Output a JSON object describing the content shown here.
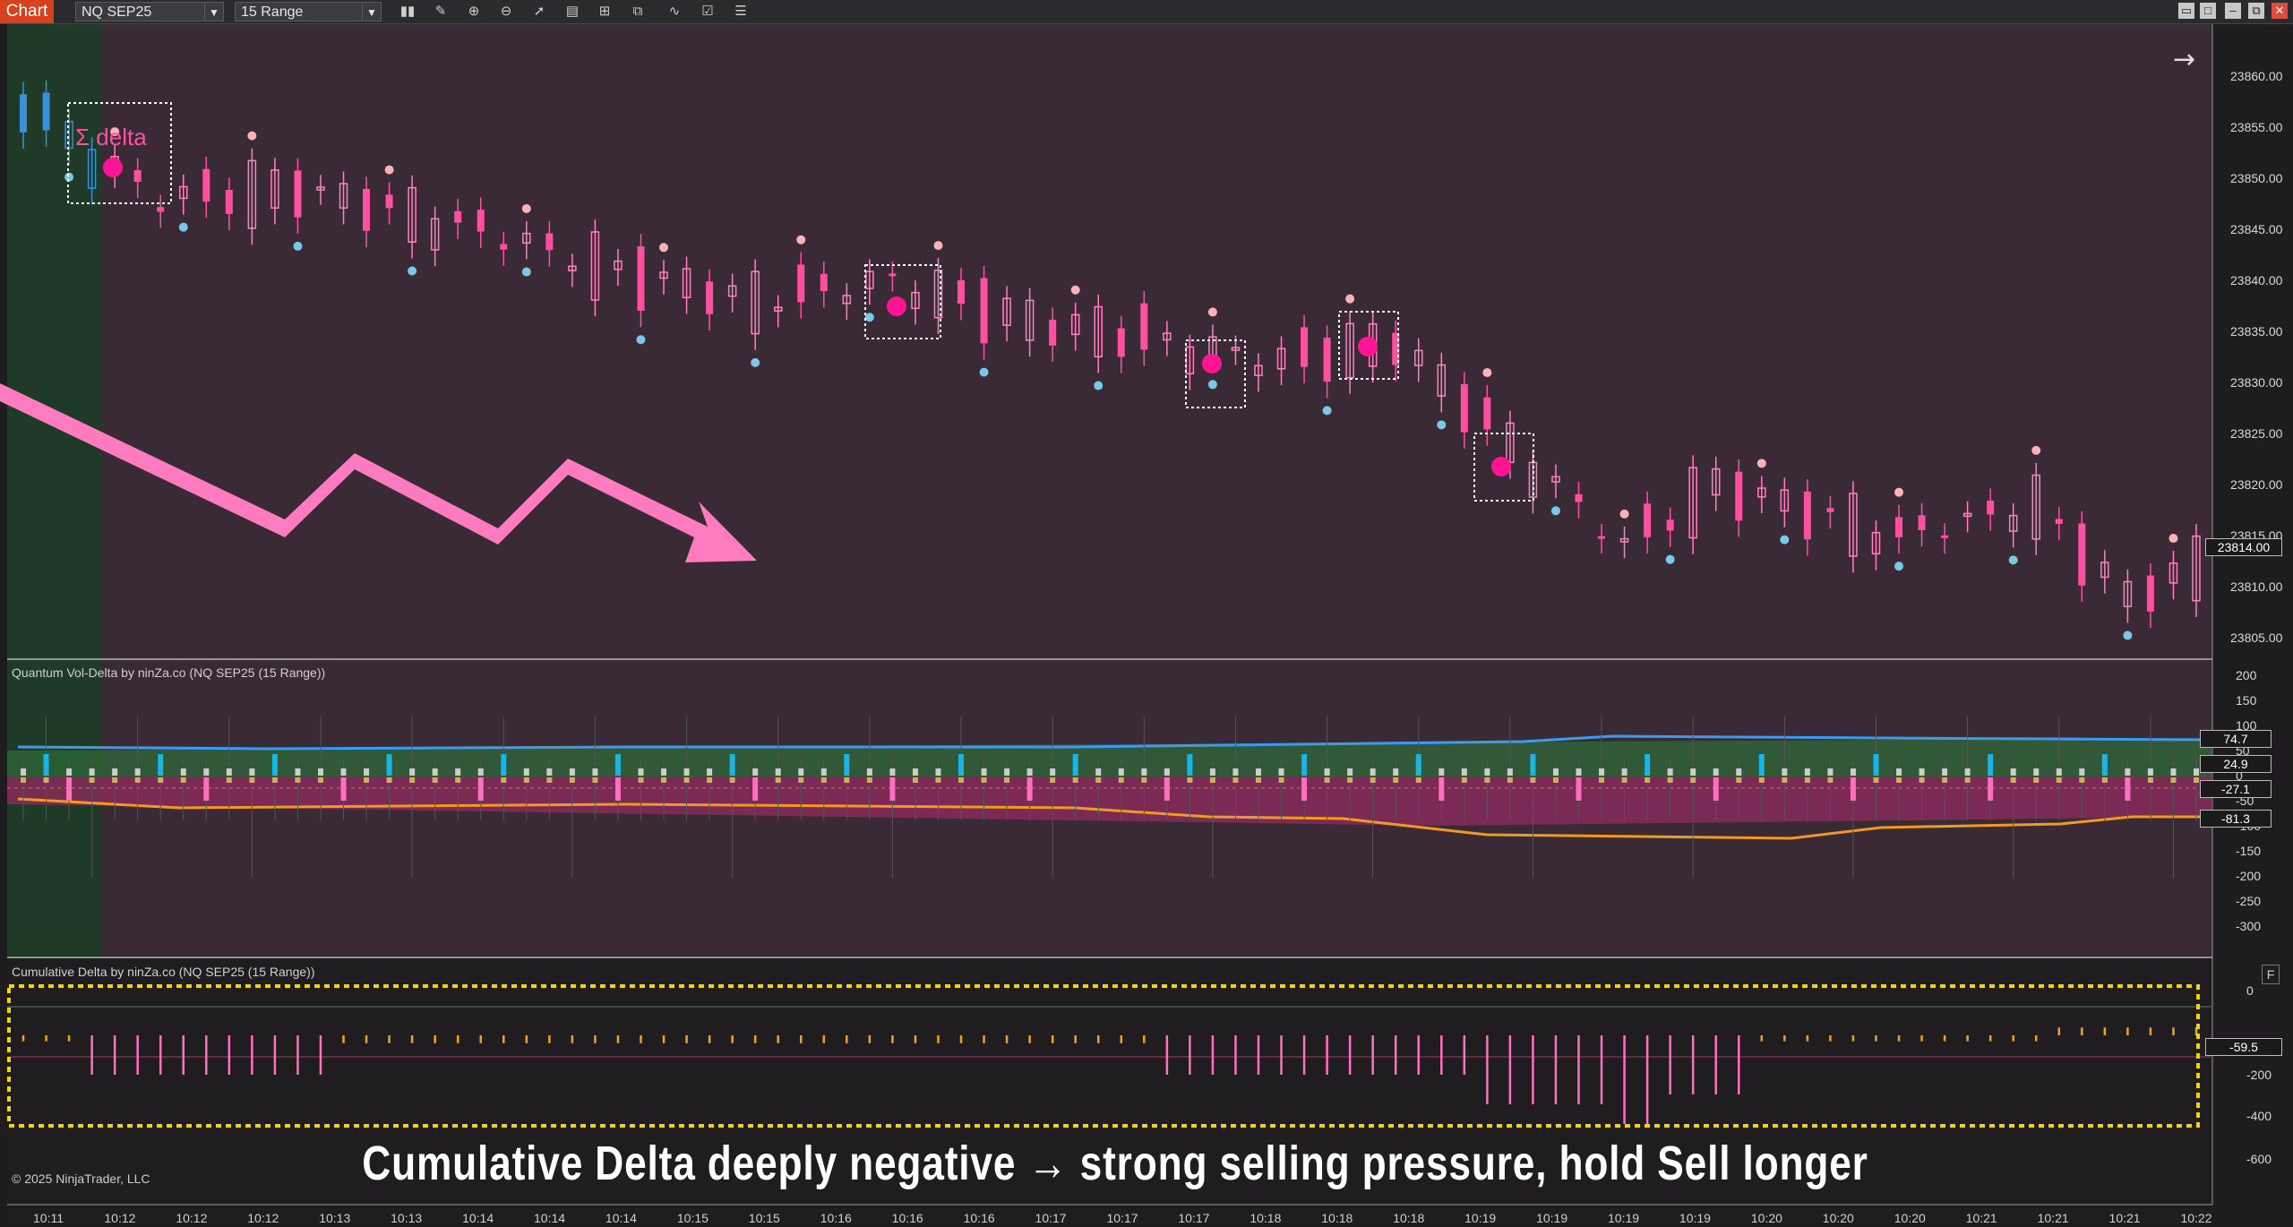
{
  "toolbar": {
    "tab_label": "Chart",
    "instrument": "NQ SEP25",
    "bar_type": "15 Range",
    "icons": [
      "bar-type-icon",
      "draw-icon",
      "zoom-in-icon",
      "zoom-out-icon",
      "cursor-icon",
      "data-box-icon",
      "template-icon",
      "strategy-icon",
      "indicator-icon",
      "properties-icon",
      "list-icon"
    ]
  },
  "window_buttons": [
    "restore",
    "maximize",
    "minimize",
    "tile",
    "close"
  ],
  "price_panel": {
    "axis_ticks": [
      "23860.00",
      "23855.00",
      "23850.00",
      "23845.00",
      "23840.00",
      "23835.00",
      "23830.00",
      "23825.00",
      "23820.00",
      "23815.00",
      "23810.00",
      "23805.00"
    ],
    "current_price": "23814.00",
    "annotation": "Σ delta",
    "arrow_color": "#ff7bbf"
  },
  "vol_delta_panel": {
    "title": "Quantum Vol-Delta by ninZa.co (NQ SEP25 (15 Range))",
    "axis_ticks": [
      "200",
      "150",
      "100",
      "50",
      "0",
      "-50",
      "-100",
      "-150",
      "-200",
      "-250",
      "-300"
    ],
    "value_boxes": [
      "74.7",
      "24.9",
      "-27.1",
      "-81.3"
    ]
  },
  "cum_delta_panel": {
    "title": "Cumulative Delta by ninZa.co (NQ SEP25 (15 Range))",
    "axis_ticks": [
      "0",
      "-200",
      "-400",
      "-600"
    ],
    "value_box": "-59.5",
    "f_button": "F"
  },
  "time_axis": [
    "10:11",
    "10:12",
    "10:12",
    "10:12",
    "10:13",
    "10:13",
    "10:14",
    "10:14",
    "10:14",
    "10:15",
    "10:15",
    "10:16",
    "10:16",
    "10:16",
    "10:17",
    "10:17",
    "10:17",
    "10:18",
    "10:18",
    "10:18",
    "10:19",
    "10:19",
    "10:19",
    "10:19",
    "10:20",
    "10:20",
    "10:20",
    "10:21",
    "10:21",
    "10:21",
    "10:22"
  ],
  "caption": "Cumulative Delta deeply negative → strong selling pressure, hold Sell longer",
  "copyright": "© 2025 NinjaTrader, LLC",
  "colors": {
    "bull_candle": "#ff80c0",
    "bear_candle": "#ff4fa3",
    "blue_candle": "#3a8fd6",
    "signal_dot": "#ff1493",
    "buy_dot": "#7ac8e8",
    "sell_dot": "#ffb0b8",
    "highlight_box": "#f2d600"
  }
}
